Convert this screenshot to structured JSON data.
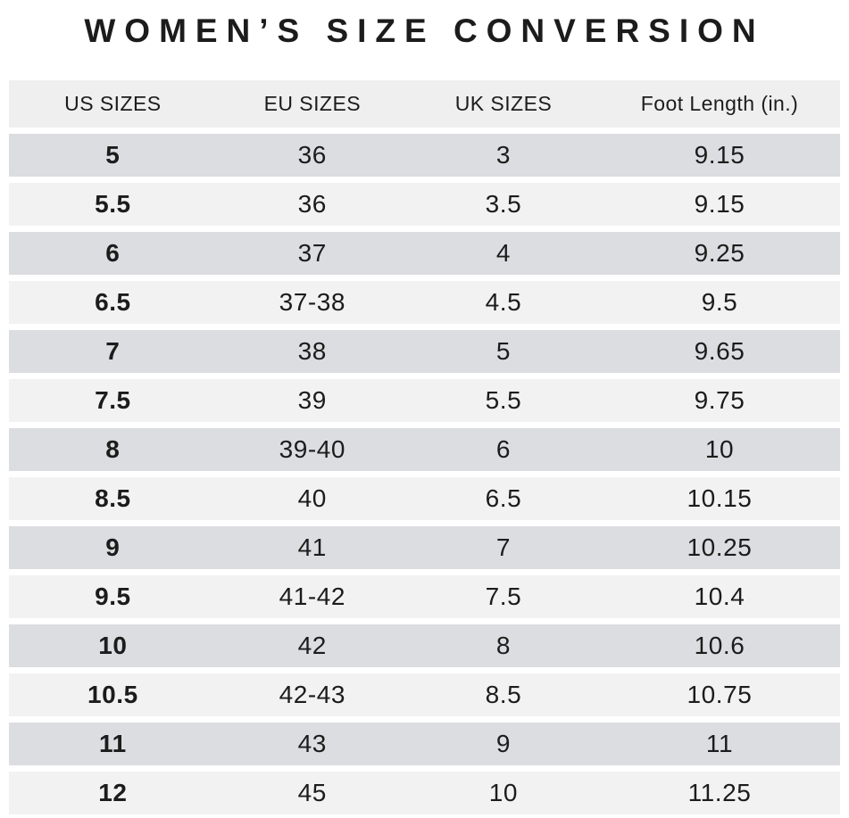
{
  "title": "WOMEN’S SIZE CONVERSION",
  "table": {
    "headers": [
      "US SIZES",
      "EU SIZES",
      "UK SIZES",
      "Foot Length (in.)"
    ],
    "rows": [
      [
        "5",
        "36",
        "3",
        "9.15"
      ],
      [
        "5.5",
        "36",
        "3.5",
        "9.15"
      ],
      [
        "6",
        "37",
        "4",
        "9.25"
      ],
      [
        "6.5",
        "37-38",
        "4.5",
        "9.5"
      ],
      [
        "7",
        "38",
        "5",
        "9.65"
      ],
      [
        "7.5",
        "39",
        "5.5",
        "9.75"
      ],
      [
        "8",
        "39-40",
        "6",
        "10"
      ],
      [
        "8.5",
        "40",
        "6.5",
        "10.15"
      ],
      [
        "9",
        "41",
        "7",
        "10.25"
      ],
      [
        "9.5",
        "41-42",
        "7.5",
        "10.4"
      ],
      [
        "10",
        "42",
        "8",
        "10.6"
      ],
      [
        "10.5",
        "42-43",
        "8.5",
        "10.75"
      ],
      [
        "11",
        "43",
        "9",
        "11"
      ],
      [
        "12",
        "45",
        "10",
        "11.25"
      ]
    ]
  },
  "colors": {
    "row_dark": "#dcdde0",
    "row_light": "#f2f2f2",
    "header_bg": "#efefef",
    "text": "#1c1c1c",
    "background": "#ffffff"
  }
}
